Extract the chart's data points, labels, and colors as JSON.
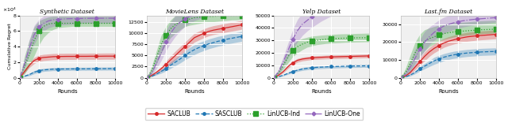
{
  "titles": [
    "Synthetic Dataset",
    "MovieLens Dataset",
    "Yelp Dataset",
    "Last.fm Dataset"
  ],
  "xlabel": "Rounds",
  "ylabel": "Cumulative Regret",
  "legend_labels": [
    "SACLUB",
    "SASCLUB",
    "LinUCB-Ind",
    "LinUCB-One"
  ],
  "colors": [
    "#d62728",
    "#1f77b4",
    "#2ca02c",
    "#9467bd"
  ],
  "linestyles": [
    "-",
    "--",
    ":",
    "-."
  ],
  "markers": [
    "o",
    "o",
    "s",
    "D"
  ],
  "markersizes": [
    2.5,
    2.5,
    3.5,
    2.5
  ],
  "rounds": [
    0,
    500,
    1000,
    1500,
    2000,
    2500,
    3000,
    3500,
    4000,
    4500,
    5000,
    5500,
    6000,
    6500,
    7000,
    7500,
    8000,
    8500,
    9000,
    9500,
    10000
  ],
  "synthetic": {
    "ylim": [
      0,
      80000
    ],
    "scale": 10000,
    "saclub_mean": [
      0,
      8000,
      16000,
      22000,
      25000,
      26000,
      26500,
      27000,
      27200,
      27300,
      27400,
      27400,
      27500,
      27500,
      27500,
      27600,
      27600,
      27600,
      27700,
      27700,
      27700
    ],
    "saclub_low": [
      0,
      6000,
      13000,
      18000,
      21000,
      22000,
      22500,
      23000,
      23200,
      23300,
      23400,
      23400,
      23500,
      23500,
      23500,
      23600,
      23600,
      23600,
      23700,
      23700,
      23700
    ],
    "saclub_high": [
      0,
      10000,
      19000,
      26000,
      29000,
      30000,
      30500,
      31000,
      31200,
      31300,
      31400,
      31400,
      31500,
      31500,
      31500,
      31600,
      31600,
      31600,
      31700,
      31700,
      31700
    ],
    "sasclub_mean": [
      0,
      2000,
      4000,
      7000,
      9000,
      10000,
      10500,
      11000,
      11000,
      11200,
      11200,
      11300,
      11300,
      11400,
      11400,
      11500,
      11500,
      11600,
      11600,
      11700,
      11700
    ],
    "sasclub_low": [
      0,
      1000,
      2500,
      5000,
      7000,
      8000,
      8500,
      9000,
      9000,
      9200,
      9200,
      9300,
      9300,
      9400,
      9400,
      9500,
      9500,
      9600,
      9600,
      9700,
      9700
    ],
    "sasclub_high": [
      0,
      3000,
      5500,
      9000,
      11000,
      12000,
      12500,
      13000,
      13000,
      13200,
      13200,
      13300,
      13300,
      13400,
      13400,
      13500,
      13500,
      13600,
      13600,
      13700,
      13700
    ],
    "linucbind_mean": [
      0,
      15000,
      30000,
      48000,
      60000,
      66000,
      69000,
      70000,
      70000,
      70000,
      70000,
      70000,
      70000,
      70000,
      70000,
      70000,
      70000,
      70000,
      70000,
      70000,
      70000
    ],
    "linucbind_low": [
      0,
      5000,
      15000,
      28000,
      42000,
      52000,
      58000,
      62000,
      64000,
      65000,
      65500,
      66000,
      66000,
      66000,
      66000,
      66000,
      66000,
      66000,
      66000,
      66000,
      66000
    ],
    "linucbind_high": [
      0,
      28000,
      48000,
      65000,
      73000,
      76000,
      78000,
      79000,
      79000,
      79000,
      79000,
      79000,
      79000,
      79000,
      79000,
      79000,
      79000,
      79000,
      79000,
      79000,
      79000
    ],
    "linucbone_mean": [
      0,
      18000,
      38000,
      55000,
      65000,
      70000,
      73000,
      74500,
      75000,
      75500,
      75800,
      76000,
      76000,
      76200,
      76300,
      76400,
      76500,
      76500,
      76500,
      76500,
      76500
    ],
    "linucbone_low": [
      0,
      12000,
      28000,
      43000,
      54000,
      60000,
      64000,
      66000,
      67000,
      68000,
      68500,
      69000,
      69500,
      70000,
      70000,
      70000,
      70000,
      70000,
      70000,
      70000,
      70000
    ],
    "linucbone_high": [
      0,
      25000,
      49000,
      67000,
      75000,
      79000,
      81000,
      82000,
      83000,
      83500,
      84000,
      84200,
      84500,
      84700,
      84800,
      85000,
      85000,
      85000,
      85000,
      85000,
      85000
    ]
  },
  "movielens": {
    "ylim": [
      0,
      14000
    ],
    "scale": 1,
    "saclub_mean": [
      0,
      500,
      1200,
      2000,
      3000,
      4000,
      5000,
      6000,
      7000,
      8000,
      9000,
      9500,
      10000,
      10400,
      10700,
      10900,
      11100,
      11300,
      11500,
      11700,
      11900
    ],
    "saclub_low": [
      0,
      300,
      900,
      1500,
      2300,
      3100,
      4000,
      5000,
      6000,
      7000,
      8000,
      8500,
      9000,
      9400,
      9700,
      9900,
      10100,
      10300,
      10500,
      10700,
      10900
    ],
    "saclub_high": [
      0,
      700,
      1500,
      2500,
      3700,
      4900,
      6000,
      7000,
      8000,
      9000,
      10000,
      10500,
      11000,
      11400,
      11700,
      11900,
      12100,
      12300,
      12500,
      12700,
      12900
    ],
    "sasclub_mean": [
      0,
      300,
      800,
      1400,
      2000,
      2800,
      3500,
      4200,
      5000,
      5700,
      6300,
      6800,
      7200,
      7600,
      7900,
      8200,
      8400,
      8700,
      8900,
      9100,
      9300
    ],
    "sasclub_low": [
      0,
      200,
      600,
      1000,
      1500,
      2100,
      2700,
      3300,
      4000,
      4600,
      5200,
      5700,
      6100,
      6500,
      6800,
      7100,
      7300,
      7600,
      7800,
      8000,
      8200
    ],
    "sasclub_high": [
      0,
      400,
      1000,
      1800,
      2500,
      3500,
      4300,
      5100,
      6000,
      6800,
      7400,
      7900,
      8300,
      8700,
      9000,
      9300,
      9500,
      9800,
      10000,
      10200,
      10400
    ],
    "linucbind_mean": [
      0,
      1500,
      4500,
      7500,
      9500,
      11000,
      12000,
      12500,
      13000,
      13200,
      13500,
      13600,
      13700,
      13800,
      13800,
      13900,
      13900,
      14000,
      14000,
      14000,
      14000
    ],
    "linucbind_low": [
      0,
      800,
      3000,
      5500,
      7500,
      9000,
      10000,
      10800,
      11500,
      11800,
      12000,
      12200,
      12400,
      12500,
      12600,
      12700,
      12800,
      12900,
      13000,
      13000,
      13100
    ],
    "linucbind_high": [
      0,
      2500,
      6000,
      9500,
      11500,
      13000,
      14000,
      14500,
      14800,
      15000,
      15200,
      15300,
      15400,
      15400,
      15400,
      15500,
      15500,
      15500,
      15500,
      15500,
      15500
    ],
    "linucbone_mean": [
      0,
      1000,
      3200,
      5500,
      8000,
      10000,
      11500,
      12500,
      13200,
      13800,
      14200,
      14600,
      15000,
      15300,
      15500,
      15700,
      15900,
      16000,
      16100,
      16200,
      16300
    ],
    "linucbone_low": [
      0,
      500,
      2000,
      3800,
      6000,
      7800,
      9300,
      10500,
      11500,
      12200,
      12800,
      13200,
      13700,
      14000,
      14300,
      14600,
      14800,
      15000,
      15100,
      15200,
      15300
    ],
    "linucbone_high": [
      0,
      1800,
      5000,
      7500,
      10500,
      12500,
      14000,
      15000,
      15800,
      16500,
      17000,
      17500,
      18000,
      18400,
      18700,
      18900,
      19100,
      19300,
      19400,
      19500,
      19600
    ]
  },
  "yelp": {
    "ylim": [
      0,
      50000
    ],
    "scale": 1,
    "saclub_mean": [
      0,
      2000,
      5000,
      9000,
      12000,
      14000,
      15000,
      15500,
      16000,
      16200,
      16400,
      16600,
      16700,
      16800,
      16900,
      17000,
      17100,
      17200,
      17300,
      17400,
      17500
    ],
    "saclub_low": [
      0,
      1500,
      4000,
      7500,
      10500,
      12500,
      13500,
      14000,
      14500,
      14700,
      14900,
      15100,
      15200,
      15300,
      15400,
      15500,
      15600,
      15700,
      15800,
      15900,
      16000
    ],
    "saclub_high": [
      0,
      2500,
      6000,
      10500,
      13500,
      15500,
      16500,
      17000,
      17500,
      17700,
      17900,
      18100,
      18200,
      18300,
      18400,
      18500,
      18600,
      18700,
      18800,
      18900,
      19000
    ],
    "sasclub_mean": [
      0,
      800,
      2000,
      3500,
      5000,
      6000,
      7000,
      7500,
      8000,
      8300,
      8500,
      8700,
      8900,
      9000,
      9100,
      9200,
      9300,
      9400,
      9400,
      9500,
      9500
    ],
    "sasclub_low": [
      0,
      500,
      1500,
      2700,
      4000,
      5000,
      5800,
      6300,
      6800,
      7100,
      7300,
      7500,
      7700,
      7800,
      7900,
      8000,
      8100,
      8200,
      8200,
      8300,
      8300
    ],
    "sasclub_high": [
      0,
      1100,
      2500,
      4300,
      6000,
      7000,
      8200,
      8700,
      9200,
      9500,
      9700,
      9900,
      10100,
      10200,
      10300,
      10400,
      10500,
      10600,
      10600,
      10700,
      10700
    ],
    "linucbind_mean": [
      0,
      4000,
      10000,
      17000,
      22000,
      25000,
      27000,
      28500,
      29500,
      30000,
      30500,
      31000,
      31200,
      31500,
      31700,
      31800,
      31900,
      32000,
      32100,
      32100,
      32200
    ],
    "linucbind_low": [
      0,
      2500,
      7000,
      12000,
      17000,
      20000,
      22500,
      24500,
      25500,
      26500,
      27000,
      27500,
      27800,
      28000,
      28200,
      28400,
      28500,
      28600,
      28700,
      28800,
      28900
    ],
    "linucbind_high": [
      0,
      6000,
      13000,
      22000,
      27000,
      30000,
      31500,
      32500,
      33500,
      33800,
      34200,
      34500,
      34800,
      35000,
      35200,
      35300,
      35400,
      35500,
      35600,
      35700,
      35800
    ],
    "linucbone_mean": [
      0,
      5000,
      13000,
      22000,
      31000,
      38000,
      43000,
      46000,
      49000,
      51500,
      54000,
      56000,
      58000,
      60000,
      61500,
      63000,
      64500,
      65500,
      66500,
      67500,
      68500
    ],
    "linucbone_low": [
      0,
      3000,
      9000,
      16000,
      23000,
      29000,
      34000,
      37500,
      40500,
      43000,
      45500,
      47500,
      49500,
      51500,
      53000,
      54500,
      56000,
      57000,
      58000,
      59000,
      60000
    ],
    "linucbone_high": [
      0,
      7000,
      17000,
      28000,
      39000,
      47000,
      52000,
      54500,
      57500,
      60000,
      62500,
      64500,
      66500,
      68500,
      70000,
      71500,
      73000,
      74000,
      75000,
      76000,
      77000
    ]
  },
  "lastfm": {
    "ylim": [
      0,
      35000
    ],
    "scale": 1,
    "saclub_mean": [
      0,
      1000,
      3000,
      6000,
      9000,
      12000,
      14500,
      16500,
      18000,
      19500,
      20500,
      21200,
      22000,
      22500,
      23000,
      23300,
      23600,
      23800,
      24000,
      24200,
      24400
    ],
    "saclub_low": [
      0,
      600,
      2000,
      4500,
      7000,
      9500,
      12000,
      14000,
      15500,
      17000,
      18000,
      18800,
      19500,
      20000,
      20500,
      20800,
      21100,
      21300,
      21500,
      21700,
      21900
    ],
    "saclub_high": [
      0,
      1500,
      4000,
      7500,
      11000,
      14500,
      17000,
      19000,
      20500,
      22000,
      23000,
      23800,
      24500,
      25000,
      25500,
      25800,
      26100,
      26300,
      26500,
      26700,
      26900
    ],
    "sasclub_mean": [
      0,
      500,
      1500,
      3000,
      5000,
      6500,
      8000,
      9500,
      10500,
      11500,
      12200,
      12800,
      13200,
      13600,
      13900,
      14100,
      14300,
      14500,
      14600,
      14700,
      14800
    ],
    "sasclub_low": [
      0,
      300,
      1000,
      2200,
      3700,
      5000,
      6300,
      7500,
      8500,
      9500,
      10200,
      10800,
      11200,
      11600,
      11900,
      12100,
      12300,
      12500,
      12600,
      12700,
      12800
    ],
    "sasclub_high": [
      0,
      700,
      2000,
      3800,
      6300,
      8000,
      9700,
      11500,
      12500,
      13500,
      14200,
      14800,
      15200,
      15600,
      15900,
      16100,
      16300,
      16500,
      16600,
      16700,
      16800
    ],
    "linucbind_mean": [
      0,
      3000,
      8000,
      14000,
      18000,
      20500,
      22000,
      23000,
      24000,
      24800,
      25300,
      25700,
      26000,
      26200,
      26400,
      26600,
      26800,
      27000,
      27100,
      27200,
      27300
    ],
    "linucbind_low": [
      0,
      1000,
      4000,
      8000,
      12000,
      15000,
      17500,
      19000,
      20500,
      21500,
      22200,
      22800,
      23300,
      23700,
      24000,
      24300,
      24500,
      24700,
      24900,
      25000,
      25200
    ],
    "linucbind_high": [
      0,
      5500,
      13000,
      20000,
      24500,
      27000,
      28000,
      28800,
      29500,
      30000,
      30500,
      30800,
      31000,
      31200,
      31400,
      31600,
      31800,
      32000,
      32100,
      32200,
      32300
    ],
    "linucbone_mean": [
      0,
      2000,
      6000,
      11000,
      16000,
      20000,
      23000,
      25500,
      27500,
      29000,
      30000,
      30800,
      31500,
      32000,
      32400,
      32700,
      33000,
      33200,
      33400,
      33600,
      33800
    ],
    "linucbone_low": [
      0,
      800,
      3000,
      7000,
      11000,
      15000,
      18500,
      21000,
      23000,
      24800,
      26000,
      27000,
      27800,
      28500,
      29000,
      29500,
      30000,
      30300,
      30600,
      30900,
      31200
    ],
    "linucbone_high": [
      0,
      3500,
      9500,
      16000,
      21500,
      26000,
      28500,
      30500,
      32500,
      34000,
      35000,
      35800,
      36500,
      37000,
      37500,
      37900,
      38200,
      38500,
      38700,
      38900,
      39100
    ]
  },
  "bg_color": "#f0f0f0",
  "grid_color": "white",
  "alpha_fill": 0.3
}
